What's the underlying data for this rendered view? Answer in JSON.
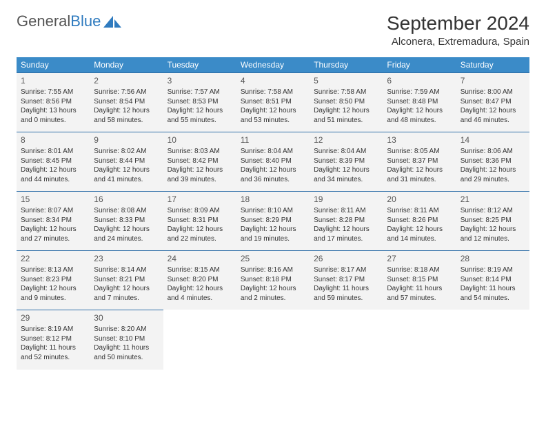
{
  "brand": {
    "name_gray": "General",
    "name_blue": "Blue"
  },
  "title": "September 2024",
  "location": "Alconera, Extremadura, Spain",
  "colors": {
    "header_bg": "#3b8bc8",
    "header_text": "#ffffff",
    "cell_bg": "#f3f3f3",
    "cell_border": "#2f6fa8",
    "text": "#333333",
    "brand_gray": "#555555",
    "brand_blue": "#2f7bbf"
  },
  "day_headers": [
    "Sunday",
    "Monday",
    "Tuesday",
    "Wednesday",
    "Thursday",
    "Friday",
    "Saturday"
  ],
  "weeks": [
    [
      {
        "n": "1",
        "sr": "7:55 AM",
        "ss": "8:56 PM",
        "dl": "13 hours and 0 minutes."
      },
      {
        "n": "2",
        "sr": "7:56 AM",
        "ss": "8:54 PM",
        "dl": "12 hours and 58 minutes."
      },
      {
        "n": "3",
        "sr": "7:57 AM",
        "ss": "8:53 PM",
        "dl": "12 hours and 55 minutes."
      },
      {
        "n": "4",
        "sr": "7:58 AM",
        "ss": "8:51 PM",
        "dl": "12 hours and 53 minutes."
      },
      {
        "n": "5",
        "sr": "7:58 AM",
        "ss": "8:50 PM",
        "dl": "12 hours and 51 minutes."
      },
      {
        "n": "6",
        "sr": "7:59 AM",
        "ss": "8:48 PM",
        "dl": "12 hours and 48 minutes."
      },
      {
        "n": "7",
        "sr": "8:00 AM",
        "ss": "8:47 PM",
        "dl": "12 hours and 46 minutes."
      }
    ],
    [
      {
        "n": "8",
        "sr": "8:01 AM",
        "ss": "8:45 PM",
        "dl": "12 hours and 44 minutes."
      },
      {
        "n": "9",
        "sr": "8:02 AM",
        "ss": "8:44 PM",
        "dl": "12 hours and 41 minutes."
      },
      {
        "n": "10",
        "sr": "8:03 AM",
        "ss": "8:42 PM",
        "dl": "12 hours and 39 minutes."
      },
      {
        "n": "11",
        "sr": "8:04 AM",
        "ss": "8:40 PM",
        "dl": "12 hours and 36 minutes."
      },
      {
        "n": "12",
        "sr": "8:04 AM",
        "ss": "8:39 PM",
        "dl": "12 hours and 34 minutes."
      },
      {
        "n": "13",
        "sr": "8:05 AM",
        "ss": "8:37 PM",
        "dl": "12 hours and 31 minutes."
      },
      {
        "n": "14",
        "sr": "8:06 AM",
        "ss": "8:36 PM",
        "dl": "12 hours and 29 minutes."
      }
    ],
    [
      {
        "n": "15",
        "sr": "8:07 AM",
        "ss": "8:34 PM",
        "dl": "12 hours and 27 minutes."
      },
      {
        "n": "16",
        "sr": "8:08 AM",
        "ss": "8:33 PM",
        "dl": "12 hours and 24 minutes."
      },
      {
        "n": "17",
        "sr": "8:09 AM",
        "ss": "8:31 PM",
        "dl": "12 hours and 22 minutes."
      },
      {
        "n": "18",
        "sr": "8:10 AM",
        "ss": "8:29 PM",
        "dl": "12 hours and 19 minutes."
      },
      {
        "n": "19",
        "sr": "8:11 AM",
        "ss": "8:28 PM",
        "dl": "12 hours and 17 minutes."
      },
      {
        "n": "20",
        "sr": "8:11 AM",
        "ss": "8:26 PM",
        "dl": "12 hours and 14 minutes."
      },
      {
        "n": "21",
        "sr": "8:12 AM",
        "ss": "8:25 PM",
        "dl": "12 hours and 12 minutes."
      }
    ],
    [
      {
        "n": "22",
        "sr": "8:13 AM",
        "ss": "8:23 PM",
        "dl": "12 hours and 9 minutes."
      },
      {
        "n": "23",
        "sr": "8:14 AM",
        "ss": "8:21 PM",
        "dl": "12 hours and 7 minutes."
      },
      {
        "n": "24",
        "sr": "8:15 AM",
        "ss": "8:20 PM",
        "dl": "12 hours and 4 minutes."
      },
      {
        "n": "25",
        "sr": "8:16 AM",
        "ss": "8:18 PM",
        "dl": "12 hours and 2 minutes."
      },
      {
        "n": "26",
        "sr": "8:17 AM",
        "ss": "8:17 PM",
        "dl": "11 hours and 59 minutes."
      },
      {
        "n": "27",
        "sr": "8:18 AM",
        "ss": "8:15 PM",
        "dl": "11 hours and 57 minutes."
      },
      {
        "n": "28",
        "sr": "8:19 AM",
        "ss": "8:14 PM",
        "dl": "11 hours and 54 minutes."
      }
    ],
    [
      {
        "n": "29",
        "sr": "8:19 AM",
        "ss": "8:12 PM",
        "dl": "11 hours and 52 minutes."
      },
      {
        "n": "30",
        "sr": "8:20 AM",
        "ss": "8:10 PM",
        "dl": "11 hours and 50 minutes."
      },
      null,
      null,
      null,
      null,
      null
    ]
  ],
  "labels": {
    "sunrise": "Sunrise: ",
    "sunset": "Sunset: ",
    "daylight": "Daylight: "
  }
}
